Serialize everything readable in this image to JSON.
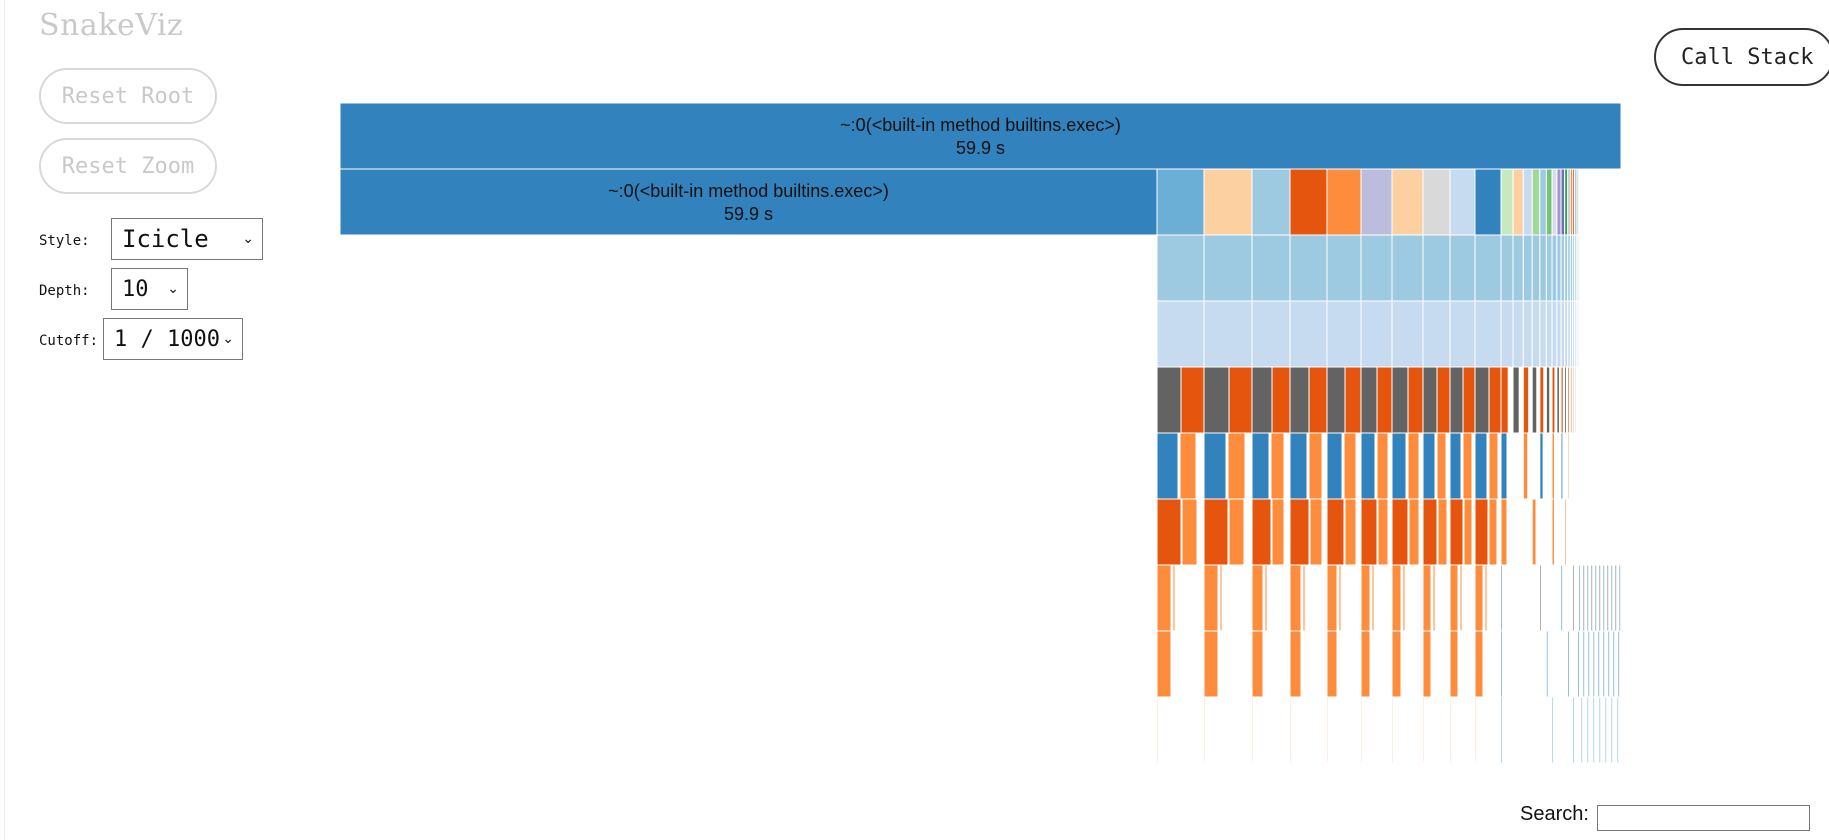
{
  "app": {
    "title": "SnakeViz"
  },
  "buttons": {
    "reset_root": "Reset Root",
    "reset_zoom": "Reset Zoom",
    "call_stack": "Call Stack"
  },
  "controls": {
    "style_label": "Style:",
    "style_value": "Icicle",
    "depth_label": "Depth:",
    "depth_value": "10",
    "cutoff_label": "Cutoff:",
    "cutoff_value": "1 / 1000"
  },
  "search": {
    "label": "Search:",
    "value": ""
  },
  "icicle": {
    "root": {
      "name": "~:0(<built-in method builtins.exec>)",
      "time": "59.9 s",
      "color": "#3182bd"
    },
    "level1_main": {
      "name": "~:0(<built-in method builtins.exec>)",
      "time": "59.9 s",
      "color": "#3182bd"
    },
    "level1_siblings": [
      {
        "color": "#6baed6"
      },
      {
        "color": "#fdd0a2"
      },
      {
        "color": "#9ecae1"
      },
      {
        "color": "#e6550d"
      },
      {
        "color": "#fd8d3c"
      },
      {
        "color": "#bcbddc"
      },
      {
        "color": "#fdd0a2"
      },
      {
        "color": "#d9d9d9"
      },
      {
        "color": "#c6dbef"
      },
      {
        "color": "#3182bd"
      }
    ],
    "tail_colors": [
      "#c7e9c0",
      "#fdd0a2",
      "#c6dbef",
      "#a1d99b",
      "#9ecae1",
      "#74c476",
      "#dadaeb",
      "#9e9ac8",
      "#756bb1",
      "#31a354",
      "#bcbddc",
      "#fd8d3c",
      "#e6550d",
      "#6baed6",
      "#636363"
    ],
    "level_colors": {
      "depth2": "#9ecae1",
      "depth3": "#c6dbef",
      "depth4_dark": "#636363",
      "depth4_orange": "#e6550d",
      "depth5_blue": "#3182bd",
      "depth5_orange": "#fd8d3c",
      "depth6_dark": "#e6550d",
      "depth6_light": "#fd8d3c",
      "depth7": "#fd8d3c",
      "depth8": "#fd8d3c",
      "depth9": "#fdae6b"
    }
  }
}
